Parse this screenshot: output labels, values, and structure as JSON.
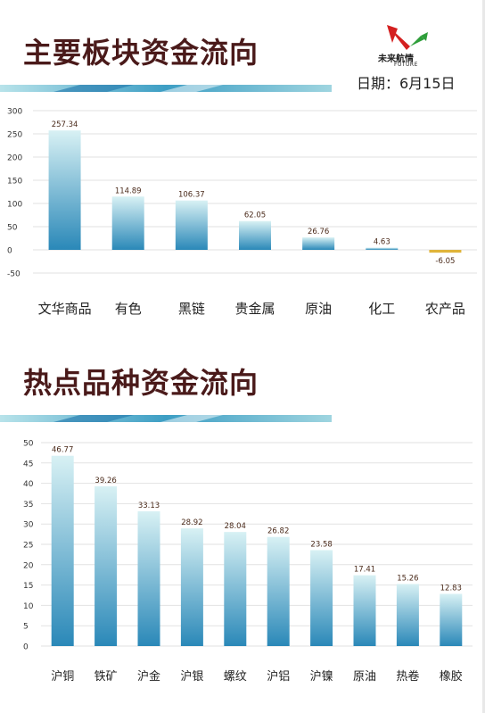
{
  "sections": [
    {
      "title": "主要板块资金流向"
    },
    {
      "title": "热点品种资金流向"
    }
  ],
  "logo": {
    "name": "未来航情",
    "sub": "FUTURE"
  },
  "date_text": "日期：6月15日",
  "colors": {
    "bar_top": "#d8f1f4",
    "bar_bottom": "#2a88b8",
    "negative_bar": "#e0b43a",
    "title": "#4a1a1a",
    "logo_red": "#d42020",
    "logo_green": "#2e9e3a"
  },
  "chart_data": [
    {
      "type": "bar",
      "title": "主要板块资金流向",
      "categories": [
        "文华商品",
        "有色",
        "黑链",
        "贵金属",
        "原油",
        "化工",
        "农产品"
      ],
      "values": [
        257.34,
        114.89,
        106.37,
        62.05,
        26.76,
        4.63,
        -6.05
      ],
      "value_labels": [
        "257.34",
        "114.89",
        "106.37",
        "62.05",
        "26.76",
        "4.63",
        "-6.05"
      ],
      "ylim": [
        -50,
        300
      ],
      "yticks": [
        -50,
        0,
        50,
        100,
        150,
        200,
        250,
        300
      ],
      "grid": true
    },
    {
      "type": "bar",
      "title": "热点品种资金流向",
      "categories": [
        "沪铜",
        "铁矿",
        "沪金",
        "沪银",
        "螺纹",
        "沪铝",
        "沪镍",
        "原油",
        "热卷",
        "橡胶"
      ],
      "values": [
        46.77,
        39.26,
        33.13,
        28.92,
        28.04,
        26.82,
        23.58,
        17.41,
        15.26,
        12.83
      ],
      "value_labels": [
        "46.77",
        "39.26",
        "33.13",
        "28.92",
        "28.04",
        "26.82",
        "23.58",
        "17.41",
        "15.26",
        "12.83"
      ],
      "ylim": [
        0,
        50
      ],
      "yticks": [
        0,
        5,
        10,
        15,
        20,
        25,
        30,
        35,
        40,
        45,
        50
      ],
      "grid": true
    }
  ]
}
